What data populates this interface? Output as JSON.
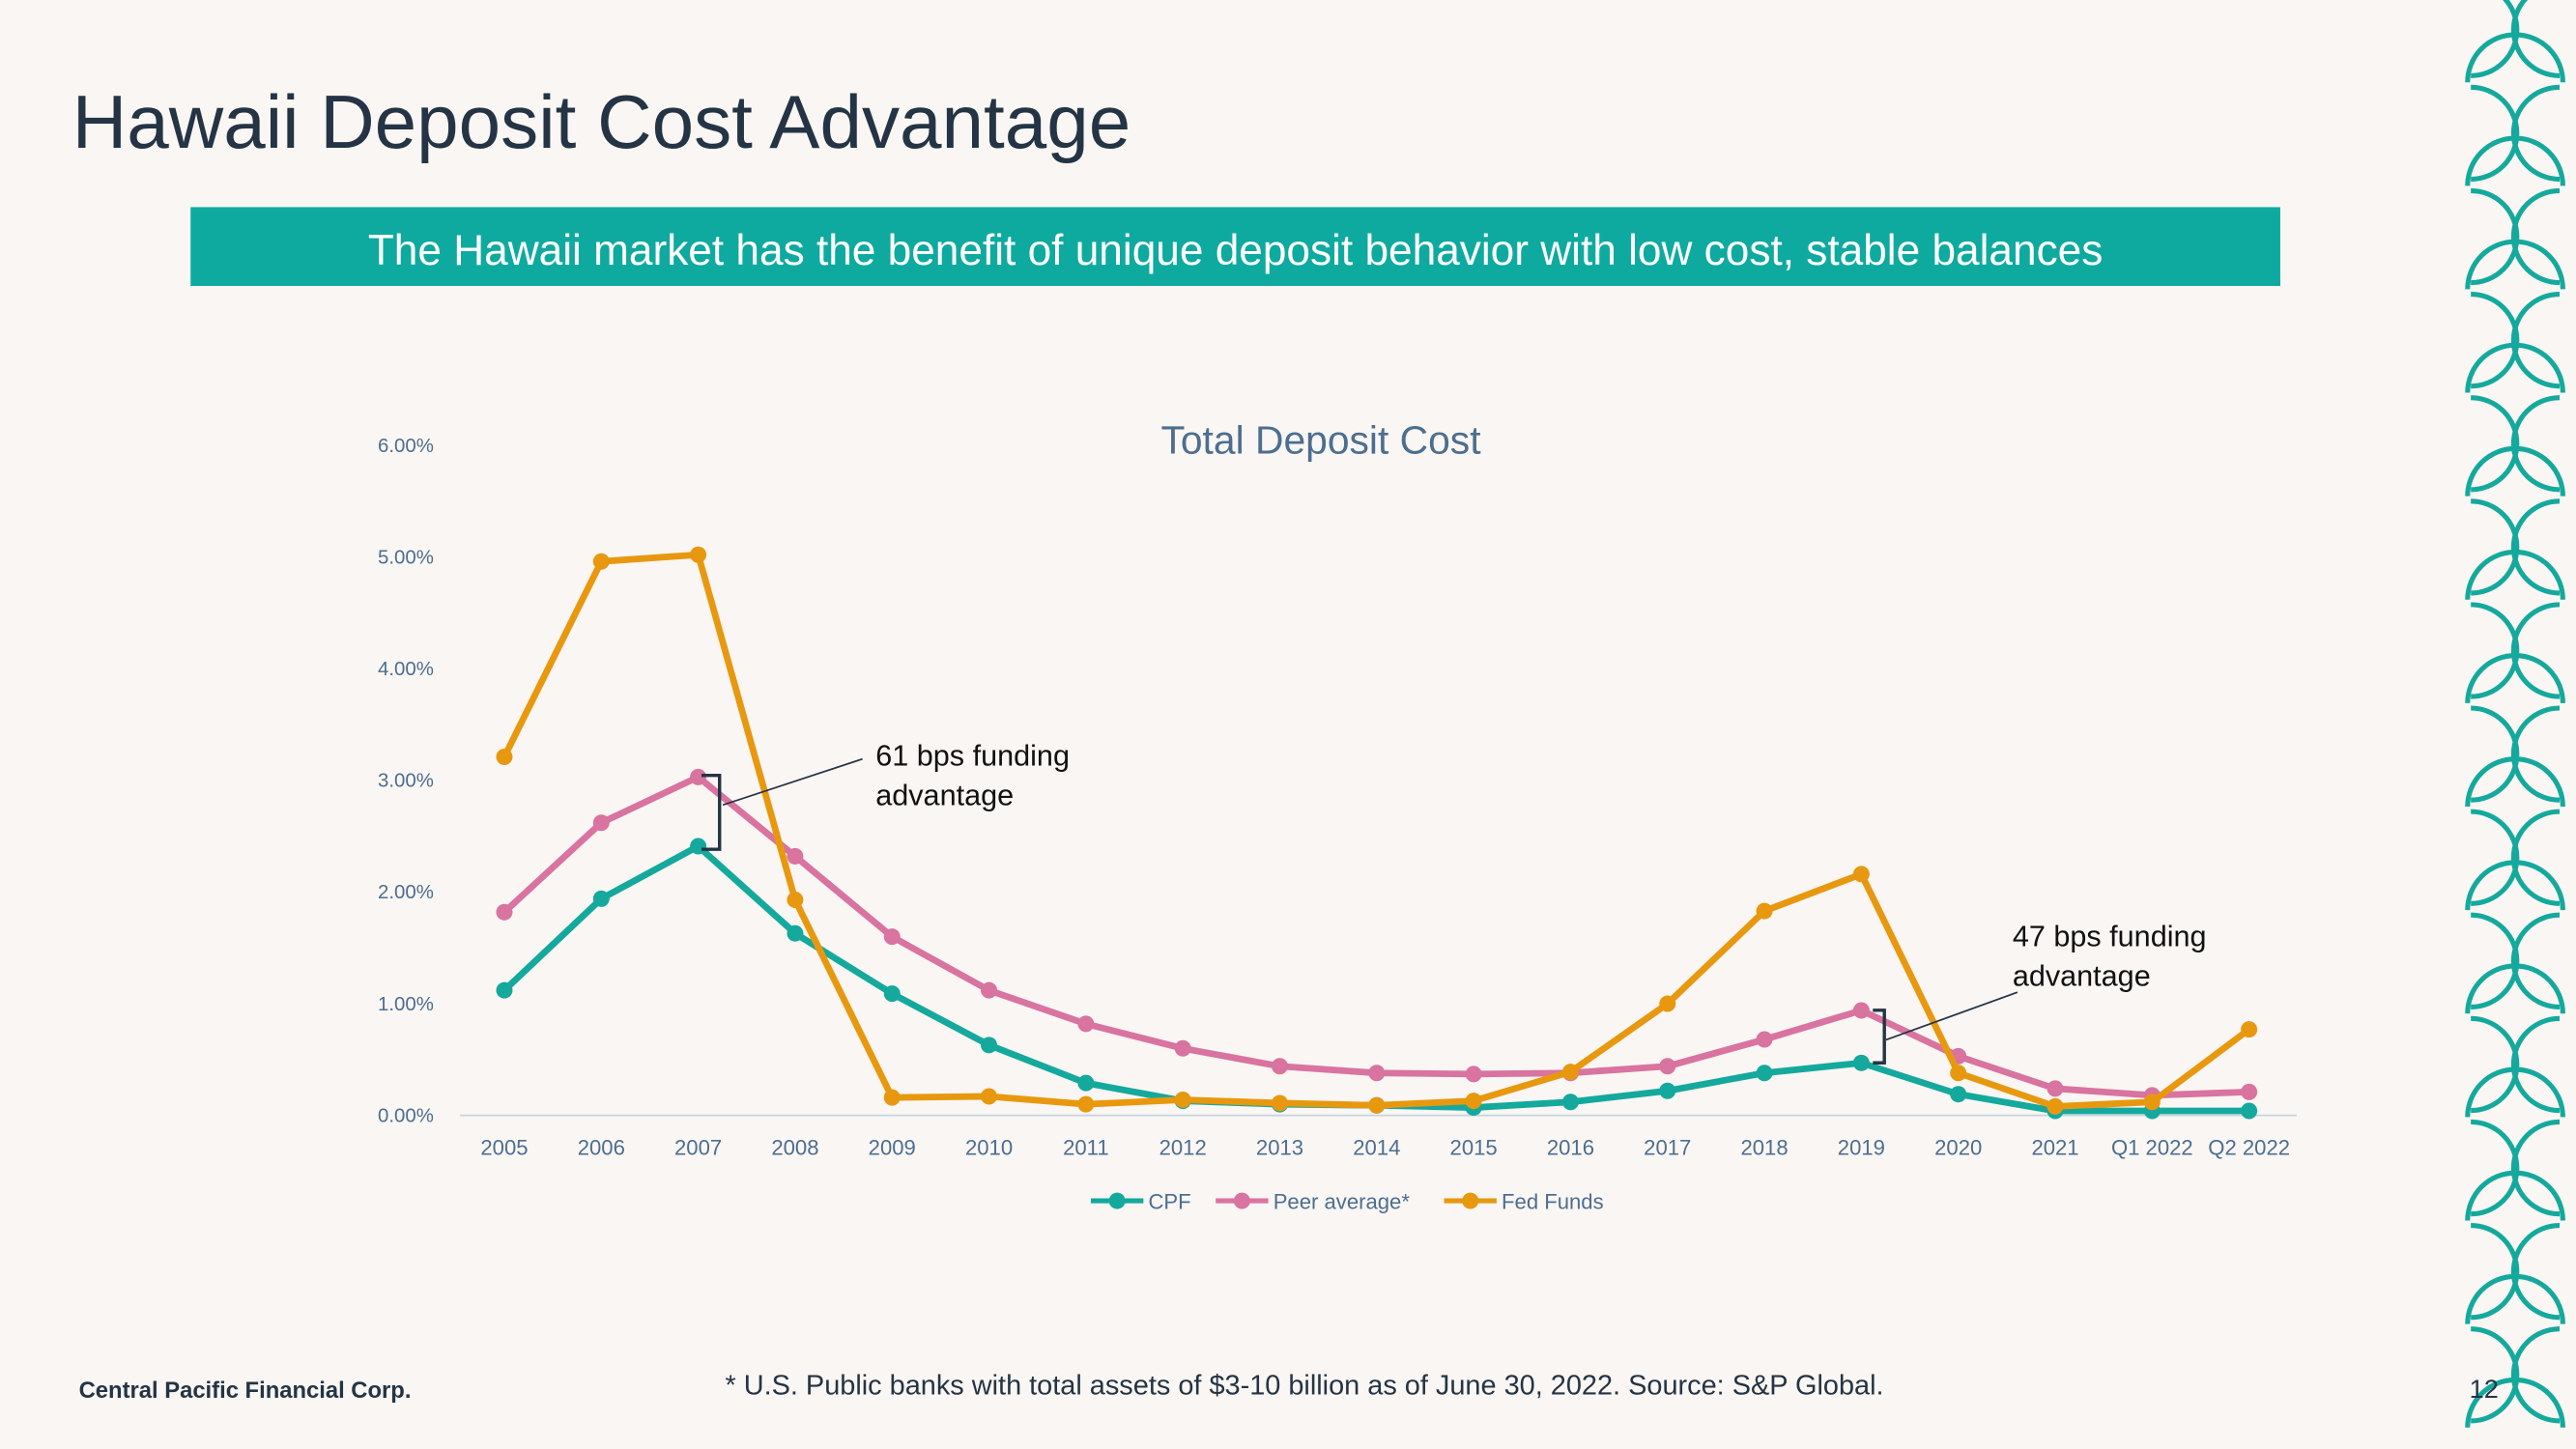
{
  "title": "Hawaii Deposit Cost Advantage",
  "subtitle": "The Hawaii market has the benefit of unique deposit behavior with low cost, stable balances",
  "chart_data": {
    "type": "line",
    "title": "Total Deposit Cost",
    "categories": [
      "2005",
      "2006",
      "2007",
      "2008",
      "2009",
      "2010",
      "2011",
      "2012",
      "2013",
      "2014",
      "2015",
      "2016",
      "2017",
      "2018",
      "2019",
      "2020",
      "2021",
      "Q1 2022",
      "Q2 2022"
    ],
    "series": [
      {
        "name": "CPF",
        "color": "#14a99c",
        "values": [
          1.12,
          1.94,
          2.41,
          1.63,
          1.09,
          0.63,
          0.29,
          0.13,
          0.1,
          0.09,
          0.07,
          0.12,
          0.22,
          0.38,
          0.47,
          0.19,
          0.04,
          0.04,
          0.04
        ]
      },
      {
        "name": "Peer average*",
        "color": "#d9739f",
        "values": [
          1.82,
          2.62,
          3.03,
          2.32,
          1.6,
          1.12,
          0.82,
          0.6,
          0.44,
          0.38,
          0.37,
          0.38,
          0.44,
          0.68,
          0.94,
          0.53,
          0.24,
          0.18,
          0.21
        ]
      },
      {
        "name": "Fed Funds",
        "color": "#e8980f",
        "values": [
          3.21,
          4.96,
          5.02,
          1.93,
          0.16,
          0.17,
          0.1,
          0.14,
          0.11,
          0.09,
          0.13,
          0.39,
          1.0,
          1.83,
          2.16,
          0.38,
          0.08,
          0.12,
          0.77
        ]
      }
    ],
    "ylim": [
      0,
      6
    ],
    "yticks": [
      {
        "value": 0,
        "label": "0.00%"
      },
      {
        "value": 1,
        "label": "1.00%"
      },
      {
        "value": 2,
        "label": "2.00%"
      },
      {
        "value": 3,
        "label": "3.00%"
      },
      {
        "value": 4,
        "label": "4.00%"
      },
      {
        "value": 5,
        "label": "5.00%"
      },
      {
        "value": 6,
        "label": "6.00%"
      }
    ],
    "legend": "bottom",
    "annotations": [
      {
        "lines": [
          "61 bps funding",
          "advantage"
        ]
      },
      {
        "lines": [
          "47 bps funding",
          "advantage"
        ]
      }
    ]
  },
  "footer": {
    "company": "Central Pacific Financial Corp.",
    "note": "* U.S. Public banks with total assets of $3-10 billion as of June 30, 2022. Source: S&P Global.",
    "page": "12"
  }
}
